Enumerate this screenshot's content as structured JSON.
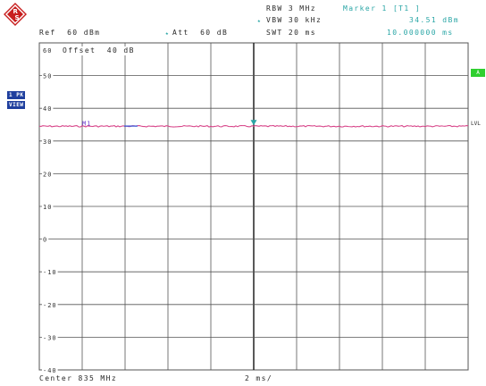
{
  "header": {
    "rbw": "RBW 3 MHz",
    "vbw_marker": "★",
    "vbw": "VBW 30 kHz",
    "swt": "SWT 20 ms",
    "marker_label": "Marker 1 [T1 ]",
    "marker_level": "34.51 dBm",
    "marker_time": "10.000000 ms",
    "ref": "Ref  60 dBm",
    "att_marker": "★",
    "att": "Att  60 dB",
    "offset": "Offset  40 dB"
  },
  "logo": {
    "letters": [
      "R",
      "S"
    ]
  },
  "side_badges": {
    "trace_line1": "1 PK",
    "trace_line2": "VIEW",
    "trigger": "A",
    "lvl": "LVL"
  },
  "y_axis": {
    "ticks": [
      "60",
      "50",
      "40",
      "30",
      "20",
      "10",
      "0",
      "-10",
      "-20",
      "-30",
      "-40"
    ],
    "min": -40,
    "max": 60,
    "divisions": 10
  },
  "x_axis": {
    "divisions": 10,
    "center_label": "Center 835 MHz",
    "span_label": "2 ms/"
  },
  "trace": {
    "level_dbm": 34.51,
    "color": "#d8468a",
    "color2": "#3c5ad8"
  },
  "marker": {
    "annotation": "M1",
    "color": "#2aa6a6",
    "time_division": 5
  },
  "colors": {
    "grid": "#555555",
    "text": "#2a2a2a",
    "accent_blue": "#1f3f9e",
    "accent_teal": "#2aa6a6",
    "accent_green": "#2fcf2f"
  }
}
